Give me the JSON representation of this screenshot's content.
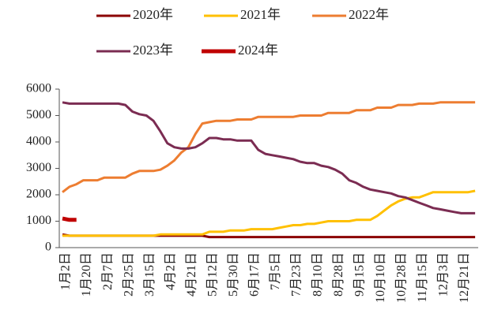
{
  "chart_data": {
    "type": "line",
    "categories": [
      "1月2日",
      null,
      null,
      "1月20日",
      null,
      null,
      "2月7日",
      null,
      null,
      "2月25日",
      null,
      null,
      "3月15日",
      null,
      null,
      "4月2日",
      null,
      null,
      "4月21日",
      null,
      null,
      "5月12日",
      null,
      null,
      "5月30日",
      null,
      null,
      "6月17日",
      null,
      null,
      "7月5日",
      null,
      null,
      "7月23日",
      null,
      null,
      "8月10日",
      null,
      null,
      "8月28日",
      null,
      null,
      "9月15日",
      null,
      null,
      "10月10日",
      null,
      null,
      "10月28日",
      null,
      null,
      "11月15日",
      null,
      null,
      "12月3日",
      null,
      null,
      "12月21日",
      null,
      null
    ],
    "series": [
      {
        "name": "2020年",
        "color": "#8b0000",
        "width": 3,
        "values": [
          500,
          450,
          450,
          450,
          450,
          450,
          450,
          450,
          450,
          450,
          450,
          450,
          450,
          450,
          450,
          450,
          450,
          450,
          450,
          450,
          450,
          400,
          400,
          400,
          400,
          400,
          400,
          400,
          400,
          400,
          400,
          400,
          400,
          400,
          400,
          400,
          400,
          400,
          400,
          400,
          400,
          400,
          400,
          400,
          400,
          400,
          400,
          400,
          400,
          400,
          400,
          400,
          400,
          400,
          400,
          400,
          400,
          400,
          400,
          400
        ]
      },
      {
        "name": "2021年",
        "color": "#ffc000",
        "width": 3,
        "values": [
          450,
          450,
          450,
          450,
          450,
          450,
          450,
          450,
          450,
          450,
          450,
          450,
          450,
          450,
          500,
          500,
          500,
          500,
          500,
          500,
          500,
          600,
          600,
          600,
          650,
          650,
          650,
          700,
          700,
          700,
          700,
          750,
          800,
          850,
          850,
          900,
          900,
          950,
          1000,
          1000,
          1000,
          1000,
          1050,
          1050,
          1050,
          1200,
          1400,
          1600,
          1750,
          1850,
          1900,
          1900,
          2000,
          2100,
          2100,
          2100,
          2100,
          2100,
          2100,
          2150
        ]
      },
      {
        "name": "2022年",
        "color": "#ed7d31",
        "width": 3,
        "values": [
          2100,
          2300,
          2400,
          2550,
          2550,
          2550,
          2650,
          2650,
          2650,
          2650,
          2800,
          2900,
          2900,
          2900,
          2950,
          3100,
          3300,
          3600,
          3800,
          4300,
          4700,
          4750,
          4800,
          4800,
          4800,
          4850,
          4850,
          4850,
          4950,
          4950,
          4950,
          4950,
          4950,
          4950,
          5000,
          5000,
          5000,
          5000,
          5100,
          5100,
          5100,
          5100,
          5200,
          5200,
          5200,
          5300,
          5300,
          5300,
          5400,
          5400,
          5400,
          5450,
          5450,
          5450,
          5500,
          5500,
          5500,
          5500,
          5500,
          5500
        ]
      },
      {
        "name": "2023年",
        "color": "#7b2c52",
        "width": 3,
        "values": [
          5500,
          5450,
          5450,
          5450,
          5450,
          5450,
          5450,
          5450,
          5450,
          5400,
          5150,
          5050,
          5000,
          4800,
          4400,
          3950,
          3800,
          3750,
          3750,
          3800,
          3950,
          4150,
          4150,
          4100,
          4100,
          4050,
          4050,
          4050,
          3700,
          3550,
          3500,
          3450,
          3400,
          3350,
          3250,
          3200,
          3200,
          3100,
          3050,
          2950,
          2800,
          2550,
          2450,
          2300,
          2200,
          2150,
          2100,
          2050,
          1950,
          1900,
          1800,
          1700,
          1600,
          1500,
          1450,
          1400,
          1350,
          1300,
          1300,
          1300
        ]
      },
      {
        "name": "2024年",
        "color": "#c00000",
        "width": 5,
        "values": [
          1100,
          1050,
          1050,
          null,
          null,
          null,
          null,
          null,
          null,
          null,
          null,
          null,
          null,
          null,
          null,
          null,
          null,
          null,
          null,
          null,
          null,
          null,
          null,
          null,
          null,
          null,
          null,
          null,
          null,
          null,
          null,
          null,
          null,
          null,
          null,
          null,
          null,
          null,
          null,
          null,
          null,
          null,
          null,
          null,
          null,
          null,
          null,
          null,
          null,
          null,
          null,
          null,
          null,
          null,
          null,
          null,
          null,
          null,
          null,
          null
        ]
      }
    ],
    "ylim": [
      0,
      6000
    ],
    "yticks": [
      0,
      1000,
      2000,
      3000,
      4000,
      5000,
      6000
    ],
    "grid": false,
    "legend": "top"
  }
}
